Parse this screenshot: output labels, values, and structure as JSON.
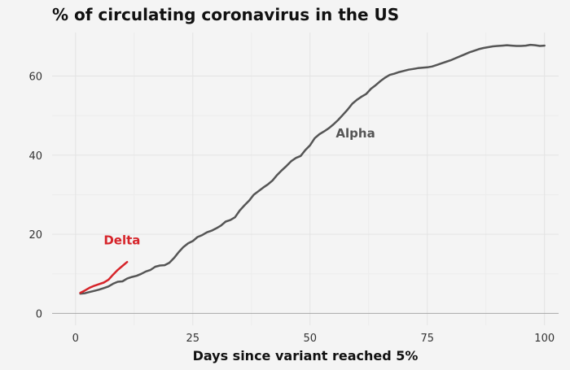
{
  "chart_data": {
    "type": "line",
    "title": "% of circulating coronavirus in the US",
    "xlabel": "Days since variant reached 5%",
    "ylabel": "",
    "xlim": [
      -5,
      103
    ],
    "ylim": [
      -3,
      71
    ],
    "xticks": [
      0,
      25,
      50,
      75,
      100
    ],
    "yticks": [
      0,
      20,
      40,
      60
    ],
    "grid": true,
    "legend": "none",
    "series": [
      {
        "name": "Delta",
        "color": "#d6242a",
        "label_at": [
          6,
          17.5
        ],
        "x": [
          1,
          2,
          3,
          4,
          5,
          6,
          7,
          8,
          9,
          10,
          11
        ],
        "y": [
          5.2,
          5.8,
          6.5,
          7.0,
          7.4,
          7.8,
          8.5,
          9.8,
          11.0,
          12.0,
          13.0
        ]
      },
      {
        "name": "Alpha",
        "color": "#555555",
        "label_at": [
          55.5,
          44.5
        ],
        "x": [
          1,
          2,
          3,
          4,
          5,
          6,
          7,
          8,
          9,
          10,
          11,
          12,
          13,
          14,
          15,
          16,
          17,
          18,
          19,
          20,
          21,
          22,
          23,
          24,
          25,
          26,
          27,
          28,
          29,
          30,
          31,
          32,
          33,
          34,
          35,
          36,
          37,
          38,
          39,
          40,
          41,
          42,
          43,
          44,
          45,
          46,
          47,
          48,
          49,
          50,
          51,
          52,
          53,
          54,
          55,
          56,
          57,
          58,
          59,
          60,
          61,
          62,
          63,
          64,
          65,
          66,
          67,
          68,
          69,
          70,
          71,
          72,
          73,
          74,
          75,
          76,
          77,
          78,
          79,
          80,
          81,
          82,
          83,
          84,
          85,
          86,
          87,
          88,
          89,
          90,
          91,
          92,
          93,
          94,
          95,
          96,
          97,
          98,
          99,
          100
        ],
        "y": [
          5.0,
          5.1,
          5.4,
          5.7,
          6.0,
          6.4,
          6.8,
          7.5,
          8.0,
          8.1,
          8.8,
          9.2,
          9.5,
          10.0,
          10.6,
          11.0,
          11.8,
          12.1,
          12.2,
          12.8,
          14.0,
          15.5,
          16.8,
          17.7,
          18.3,
          19.3,
          19.8,
          20.5,
          20.9,
          21.5,
          22.2,
          23.2,
          23.6,
          24.3,
          26.0,
          27.3,
          28.5,
          30.0,
          30.9,
          31.8,
          32.6,
          33.6,
          35.0,
          36.2,
          37.3,
          38.5,
          39.3,
          39.8,
          41.3,
          42.5,
          44.3,
          45.3,
          46.0,
          46.8,
          47.8,
          48.9,
          50.2,
          51.5,
          53.0,
          54.0,
          54.8,
          55.5,
          56.8,
          57.7,
          58.7,
          59.6,
          60.3,
          60.6,
          61.0,
          61.3,
          61.6,
          61.8,
          62.0,
          62.1,
          62.2,
          62.4,
          62.8,
          63.2,
          63.6,
          64.0,
          64.5,
          65.0,
          65.5,
          66.0,
          66.4,
          66.8,
          67.1,
          67.3,
          67.5,
          67.6,
          67.7,
          67.8,
          67.7,
          67.6,
          67.6,
          67.7,
          67.9,
          67.8,
          67.6,
          67.7
        ]
      }
    ]
  }
}
